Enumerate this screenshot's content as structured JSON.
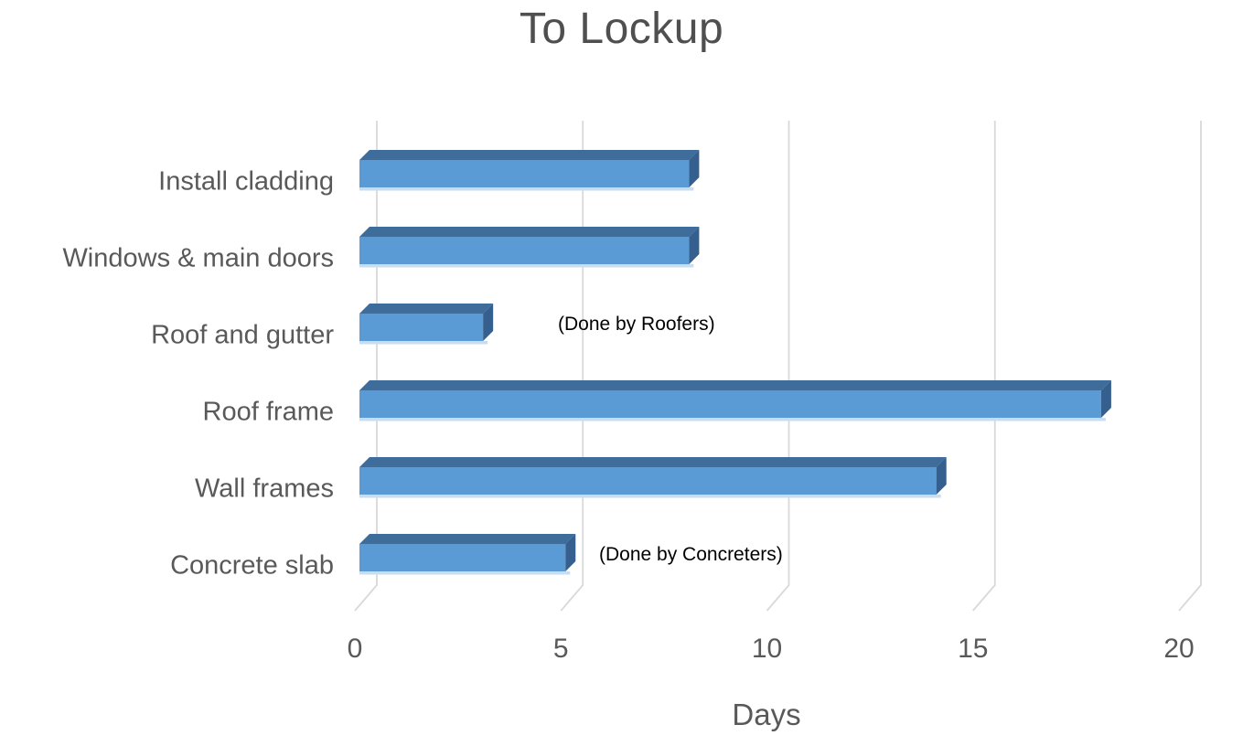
{
  "chart_data": {
    "type": "bar",
    "orientation": "horizontal",
    "style": "3d",
    "title": "To Lockup",
    "xlabel": "Days",
    "categories": [
      "Install cladding",
      "Windows & main doors",
      "Roof and gutter",
      "Roof frame",
      "Wall frames",
      "Concrete slab"
    ],
    "values": [
      8,
      8,
      3,
      18,
      14,
      5
    ],
    "xlim": [
      0,
      20
    ],
    "xticks": [
      0,
      5,
      10,
      15,
      20
    ],
    "grid": true,
    "legend": false,
    "annotations": [
      {
        "text": "(Done by Roofers)",
        "category": "Roof and gutter"
      },
      {
        "text": "(Done by Concreters)",
        "category": "Concrete slab"
      }
    ],
    "colors": {
      "bar_front": "#5b9bd5",
      "bar_top": "#3e6d9c",
      "bar_side": "#345f8e",
      "bar_bottom_highlight": "#c9ddf0",
      "gridline": "#d9d9d9",
      "text": "#595959",
      "annotation_text": "#000000"
    }
  }
}
